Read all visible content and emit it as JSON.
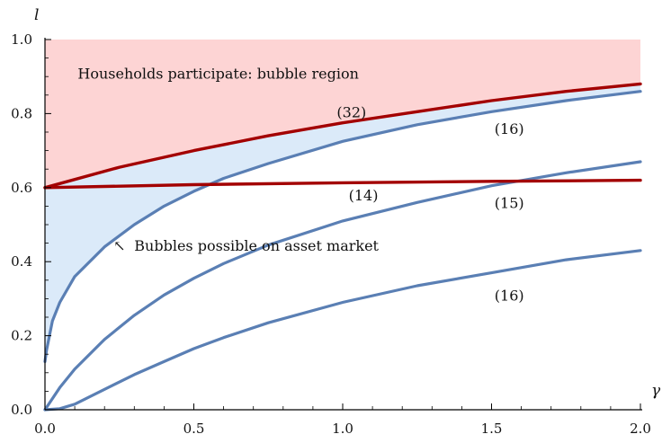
{
  "chart_data": {
    "type": "line",
    "xlabel": "γ",
    "ylabel": "l",
    "xlim": [
      0.0,
      2.0
    ],
    "ylim": [
      0.0,
      1.0
    ],
    "x_ticks": [
      "0.0",
      "0.5",
      "1.0",
      "1.5",
      "2.0"
    ],
    "y_ticks": [
      "0.0",
      "0.2",
      "0.4",
      "0.6",
      "0.8",
      "1.0"
    ],
    "grid": false,
    "colors": {
      "red_curve": "#a30000",
      "blue_curve": "#5a7fb4",
      "bubble_region": "#fdd4d4",
      "possible_region": "#dbeaf9"
    },
    "series": [
      {
        "label": "(32)",
        "color": "red",
        "x": [
          0,
          0.25,
          0.5,
          0.75,
          1.0,
          1.25,
          1.5,
          1.75,
          2.0
        ],
        "y": [
          0.6,
          0.655,
          0.7,
          0.74,
          0.775,
          0.805,
          0.835,
          0.86,
          0.88
        ]
      },
      {
        "label": "(14)",
        "color": "red",
        "x": [
          0,
          0.5,
          1.0,
          1.5,
          2.0
        ],
        "y": [
          0.6,
          0.608,
          0.613,
          0.617,
          0.62
        ]
      },
      {
        "label": "(16)",
        "color": "blue",
        "x": [
          0,
          0.005,
          0.025,
          0.05,
          0.1,
          0.2,
          0.3,
          0.4,
          0.5,
          0.6,
          0.75,
          1.0,
          1.25,
          1.5,
          1.75,
          2.0
        ],
        "y": [
          0.13,
          0.16,
          0.24,
          0.29,
          0.36,
          0.44,
          0.5,
          0.55,
          0.59,
          0.625,
          0.665,
          0.725,
          0.77,
          0.805,
          0.835,
          0.86
        ]
      },
      {
        "label": "(15)",
        "color": "blue",
        "x": [
          0,
          0.05,
          0.1,
          0.2,
          0.3,
          0.4,
          0.5,
          0.6,
          0.75,
          1.0,
          1.25,
          1.5,
          1.75,
          2.0
        ],
        "y": [
          0,
          0.06,
          0.11,
          0.19,
          0.255,
          0.31,
          0.355,
          0.395,
          0.445,
          0.51,
          0.56,
          0.605,
          0.64,
          0.67
        ]
      },
      {
        "label": "(16)",
        "color": "blue",
        "x": [
          0,
          0.05,
          0.1,
          0.2,
          0.3,
          0.4,
          0.5,
          0.6,
          0.75,
          1.0,
          1.25,
          1.5,
          1.75,
          2.0
        ],
        "y": [
          0,
          0.003,
          0.015,
          0.055,
          0.095,
          0.13,
          0.165,
          0.195,
          0.235,
          0.29,
          0.335,
          0.37,
          0.405,
          0.43
        ]
      }
    ],
    "regions": [
      {
        "label": "Households participate: bubble region",
        "color": "pink"
      },
      {
        "label": "Bubbles possible on asset market",
        "color": "lightblue"
      }
    ],
    "annotations": [
      {
        "text": "(32)",
        "x": 0.98,
        "y": 0.79
      },
      {
        "text": "(16)",
        "x": 1.51,
        "y": 0.745
      },
      {
        "text": "(14)",
        "x": 1.02,
        "y": 0.565
      },
      {
        "text": "(15)",
        "x": 1.51,
        "y": 0.545
      },
      {
        "text": "(16)",
        "x": 1.51,
        "y": 0.295
      },
      {
        "text": "Households participate: bubble region",
        "x": 0.11,
        "y": 0.895
      },
      {
        "text": "Bubbles possible on asset market",
        "x": 0.3,
        "y": 0.43
      },
      {
        "text": "↖",
        "x": 0.23,
        "y": 0.43
      }
    ]
  }
}
